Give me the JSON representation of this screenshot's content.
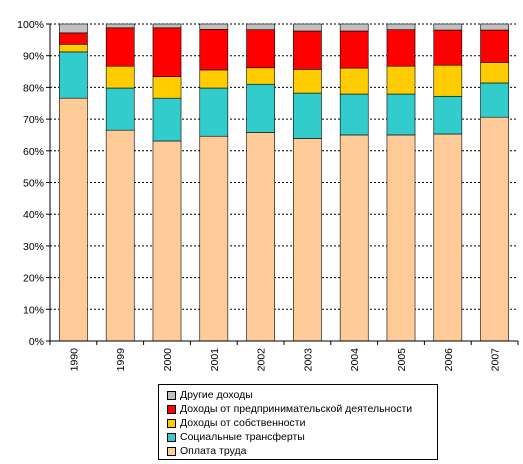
{
  "chart_data": {
    "type": "bar",
    "stacked": true,
    "percent": true,
    "title": "",
    "xlabel": "",
    "ylabel": "",
    "ylim": [
      0,
      100
    ],
    "yticks": [
      "0%",
      "10%",
      "20%",
      "30%",
      "40%",
      "50%",
      "60%",
      "70%",
      "80%",
      "90%",
      "100%"
    ],
    "grid": "horizontal dotted",
    "legend_position": "bottom",
    "categories": [
      "1990",
      "1999",
      "2000",
      "2001",
      "2002",
      "2003",
      "2004",
      "2005",
      "2006",
      "2007"
    ],
    "series": [
      {
        "name": "Оплата труда",
        "color": "#ffcc99",
        "values": [
          76.6,
          66.5,
          63.1,
          64.6,
          65.8,
          63.9,
          65.0,
          65.0,
          65.3,
          70.6
        ]
      },
      {
        "name": "Социальные трансферты",
        "color": "#33cccc",
        "values": [
          14.6,
          13.3,
          13.5,
          15.2,
          15.2,
          14.3,
          12.9,
          12.9,
          11.9,
          10.8
        ]
      },
      {
        "name": "Доходы от собственности",
        "color": "#ffcc00",
        "values": [
          2.4,
          6.9,
          6.8,
          5.7,
          5.2,
          7.5,
          8.2,
          8.8,
          9.8,
          6.5
        ]
      },
      {
        "name": "Доходы от предпринимательской деятельности",
        "color": "#ff0000",
        "values": [
          3.6,
          12.1,
          15.4,
          12.8,
          12.0,
          12.1,
          11.7,
          11.5,
          11.1,
          10.2
        ]
      },
      {
        "name": "Другие доходы",
        "color": "#c0c0c0",
        "values": [
          2.8,
          1.2,
          1.2,
          1.7,
          1.8,
          2.2,
          2.2,
          1.8,
          1.9,
          1.9
        ]
      }
    ]
  }
}
